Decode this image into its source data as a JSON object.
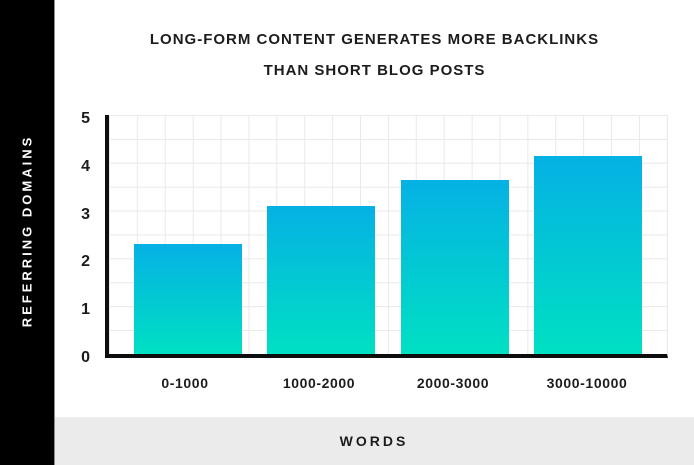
{
  "title": {
    "line1": "LONG-FORM CONTENT GENERATES MORE BACKLINKS",
    "line2": "THAN SHORT BLOG POSTS"
  },
  "chart_data": {
    "type": "bar",
    "categories": [
      "0-1000",
      "1000-2000",
      "2000-3000",
      "3000-10000"
    ],
    "values": [
      2.3,
      3.1,
      3.65,
      4.15
    ],
    "title": "LONG-FORM CONTENT GENERATES MORE BACKLINKS THAN SHORT BLOG POSTS",
    "xlabel": "WORDS",
    "ylabel": "REFERRING DOMAINS",
    "ylim": [
      0,
      5
    ],
    "yticks": [
      0,
      1,
      2,
      3,
      4,
      5
    ],
    "grid": true,
    "legend": "none",
    "bar_gradient_top": "#05b1e4",
    "bar_gradient_bottom": "#00e0c3"
  },
  "colors": {
    "sidebar_bg": "#000000",
    "sidebar_text": "#ffffff",
    "footer_bg": "#ebebeb",
    "title_text": "#1c1c1c",
    "axis": "#0d0d0d",
    "grid_line": "#e9e9e9"
  }
}
